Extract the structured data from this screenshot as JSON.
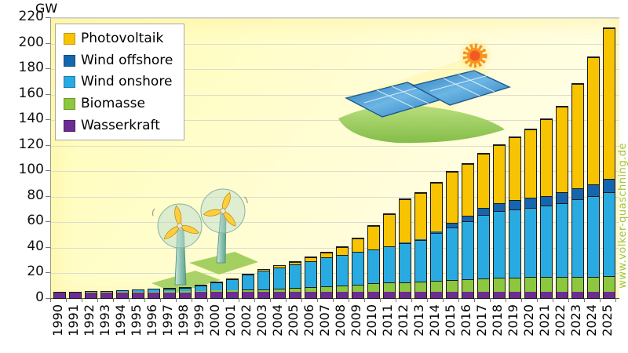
{
  "chart_data": {
    "type": "bar",
    "stacked": true,
    "title": "",
    "unit_label": "GW",
    "ylim": [
      0,
      220
    ],
    "ytick_step": 20,
    "grid": true,
    "legend_position": "top-left",
    "categories": [
      "1990",
      "1991",
      "1992",
      "1993",
      "1994",
      "1995",
      "1996",
      "1997",
      "1998",
      "1999",
      "2000",
      "2001",
      "2002",
      "2003",
      "2004",
      "2005",
      "2006",
      "2007",
      "2008",
      "2009",
      "2010",
      "2011",
      "2012",
      "2013",
      "2014",
      "2015",
      "2016",
      "2017",
      "2018",
      "2019",
      "2020",
      "2021",
      "2022",
      "2023",
      "2024",
      "2025"
    ],
    "series": [
      {
        "name": "Wasserkraft",
        "color": "#6B2D91",
        "values": [
          4.4,
          4.4,
          4.4,
          4.5,
          4.5,
          4.5,
          4.6,
          4.6,
          4.6,
          4.7,
          4.8,
          4.8,
          4.8,
          4.8,
          4.8,
          4.8,
          4.8,
          4.8,
          4.8,
          4.8,
          4.9,
          4.9,
          4.9,
          4.9,
          4.9,
          4.9,
          4.9,
          4.9,
          4.9,
          4.9,
          4.9,
          4.9,
          4.9,
          4.9,
          4.9,
          4.9
        ]
      },
      {
        "name": "Biomasse",
        "color": "#8DC63F",
        "values": [
          0.2,
          0.2,
          0.3,
          0.3,
          0.4,
          0.5,
          0.6,
          0.7,
          0.8,
          1.0,
          1.2,
          1.4,
          1.7,
          2.1,
          2.5,
          3.2,
          3.9,
          4.7,
          5.2,
          5.9,
          6.6,
          7.2,
          7.6,
          8.1,
          8.7,
          9.5,
          9.9,
          10.2,
          10.9,
          11.2,
          11.4,
          11.5,
          11.6,
          11.8,
          12.0,
          12.1
        ]
      },
      {
        "name": "Wind onshore",
        "color": "#29ABE2",
        "values": [
          0.1,
          0.1,
          0.2,
          0.3,
          0.6,
          1.1,
          1.5,
          2.1,
          2.9,
          4.4,
          6.1,
          8.7,
          11.9,
          14.6,
          16.6,
          18.2,
          20.5,
          22.2,
          23.8,
          25.7,
          26.8,
          28.5,
          30.7,
          32.4,
          37.6,
          41.2,
          45.3,
          50.2,
          52.4,
          53.2,
          54.4,
          56.0,
          58.1,
          61.0,
          63.3,
          66.0
        ]
      },
      {
        "name": "Wind offshore",
        "color": "#1566AE",
        "values": [
          0,
          0,
          0,
          0,
          0,
          0,
          0,
          0,
          0,
          0,
          0,
          0,
          0,
          0,
          0,
          0,
          0,
          0,
          0,
          0,
          0.1,
          0.2,
          0.3,
          0.5,
          1.0,
          3.3,
          4.2,
          5.4,
          6.4,
          7.5,
          7.8,
          7.8,
          8.1,
          8.4,
          9.2,
          10.5
        ]
      },
      {
        "name": "Photovoltaik",
        "color": "#F8C301",
        "values": [
          0,
          0,
          0,
          0,
          0,
          0,
          0,
          0,
          0,
          0,
          0.1,
          0.2,
          0.3,
          0.4,
          1.1,
          2.1,
          2.9,
          4.2,
          6.1,
          10.6,
          18.0,
          25.4,
          34.1,
          36.7,
          37.9,
          39.8,
          40.7,
          42.3,
          45.2,
          48.9,
          53.7,
          59.9,
          67.4,
          82.0,
          99.3,
          118.0
        ]
      }
    ],
    "legend": [
      {
        "label": "Photovoltaik",
        "color": "#F8C301",
        "edge": "#C89600"
      },
      {
        "label": "Wind offshore",
        "color": "#1566AE",
        "edge": "#0E4D85"
      },
      {
        "label": "Wind onshore",
        "color": "#29ABE2",
        "edge": "#1A7FB0"
      },
      {
        "label": "Biomasse",
        "color": "#8DC63F",
        "edge": "#6A9A2B"
      },
      {
        "label": "Wasserkraft",
        "color": "#6B2D91",
        "edge": "#4E1F6E"
      }
    ]
  },
  "page": {
    "watermark": "www.volker-quaschning.de"
  },
  "icons": {
    "sun": "sun-icon",
    "solar_panels": "solar-panel-illustration",
    "wind_turbines": "wind-turbine-illustration"
  }
}
